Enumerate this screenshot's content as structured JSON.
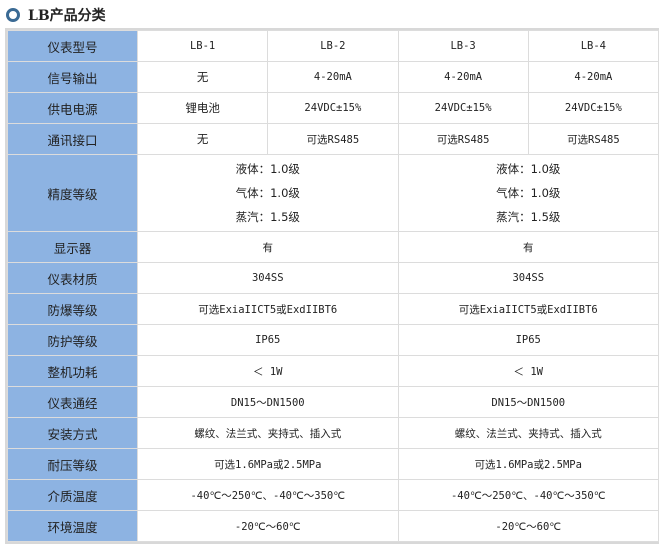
{
  "title": "LB产品分类",
  "rows": [
    {
      "label": "仪表型号",
      "cells": [
        "LB-1",
        "LB-2",
        "LB-3",
        "LB-4"
      ]
    },
    {
      "label": "信号输出",
      "cells": [
        "无",
        "4-20mA",
        "4-20mA",
        "4-20mA"
      ]
    },
    {
      "label": "供电电源",
      "cells": [
        "锂电池",
        "24VDC±15%",
        "24VDC±15%",
        "24VDC±15%"
      ]
    },
    {
      "label": "通讯接口",
      "cells": [
        "无",
        "可选RS485",
        "可选RS485",
        "可选RS485"
      ]
    }
  ],
  "accuracy": {
    "label": "精度等级",
    "lines": [
      "液体：1.0级",
      "气体：1.0级",
      "蒸汽：1.5级"
    ]
  },
  "merged_rows": [
    {
      "label": "显示器",
      "value": "有"
    },
    {
      "label": "仪表材质",
      "value": "304SS"
    },
    {
      "label": "防爆等级",
      "value": "可选ExiaIICT5或ExdIIBT6"
    },
    {
      "label": "防护等级",
      "value": "IP65"
    },
    {
      "label": "整机功耗",
      "value": "＜ 1W"
    },
    {
      "label": "仪表通经",
      "value": "DN15～DN1500"
    },
    {
      "label": "安装方式",
      "value": "螺纹、法兰式、夹持式、插入式"
    },
    {
      "label": "耐压等级",
      "value": "可选1.6MPa或2.5MPa"
    },
    {
      "label": "介质温度",
      "value": "-40℃～250℃、-40℃～350℃"
    },
    {
      "label": "环境温度",
      "value": "-20℃～60℃"
    }
  ],
  "colors": {
    "label_bg": "#8db3e2",
    "border": "#dcdcdc"
  }
}
